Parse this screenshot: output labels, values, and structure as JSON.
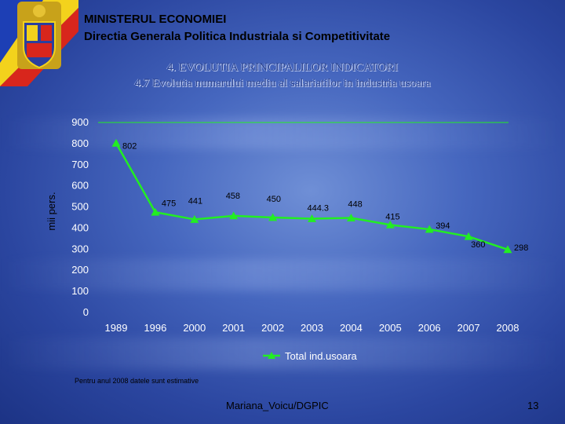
{
  "header": {
    "line1": "MINISTERUL ECONOMIEI",
    "line2": "Directia Generala Politica Industriala si Competitivitate"
  },
  "slide": {
    "title": "4. EVOLUTIA PRINCIPALILOR INDICATORI",
    "subtitle": "4.7 Evolutia numarului mediu al salariatilor in industria usoara",
    "footnote": "Pentru anul 2008 datele sunt estimative",
    "author": "Mariana_Voicu/DGPIC",
    "page_number": "13"
  },
  "colors": {
    "series": "#22ee22",
    "text": "#ffffff",
    "label": "#000000"
  },
  "chart_data": {
    "type": "line",
    "title": "",
    "xlabel": "",
    "ylabel": "mii pers.",
    "ylim": [
      0,
      900
    ],
    "yticks": [
      0,
      100,
      200,
      300,
      400,
      500,
      600,
      700,
      800,
      900
    ],
    "categories": [
      "1989",
      "1996",
      "2000",
      "2001",
      "2002",
      "2003",
      "2004",
      "2005",
      "2006",
      "2007",
      "2008"
    ],
    "series": [
      {
        "name": "Total ind.usoara",
        "values": [
          802,
          475,
          441,
          458,
          450,
          444.3,
          448,
          415,
          394,
          360,
          298
        ],
        "labels": [
          "802",
          "475",
          "441",
          "458",
          "450",
          "444.3",
          "448",
          "415",
          "394",
          "360",
          "298"
        ]
      }
    ],
    "legend": "bottom"
  }
}
